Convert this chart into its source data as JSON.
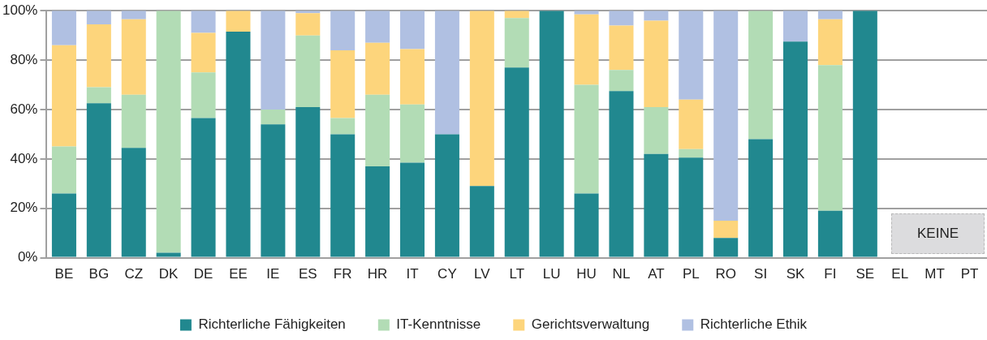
{
  "chart_data": {
    "type": "bar",
    "stacked": true,
    "categories": [
      "BE",
      "BG",
      "CZ",
      "DK",
      "DE",
      "EE",
      "IE",
      "ES",
      "FR",
      "HR",
      "IT",
      "CY",
      "LV",
      "LT",
      "LU",
      "HU",
      "NL",
      "AT",
      "PL",
      "RO",
      "SI",
      "SK",
      "FI",
      "SE",
      "EL",
      "MT",
      "PT"
    ],
    "series": [
      {
        "name": "Richterliche Fähigkeiten",
        "color": "#21888f",
        "values": [
          26,
          62.5,
          44.5,
          2,
          56.5,
          91.5,
          54,
          61,
          50,
          37,
          38.5,
          50,
          29,
          77,
          100,
          26,
          67.5,
          42,
          40.5,
          8,
          48,
          87.5,
          19,
          100,
          null,
          null,
          null
        ]
      },
      {
        "name": "IT-Kenntnisse",
        "color": "#b2dcb5",
        "values": [
          19,
          6.5,
          21.5,
          98,
          18.5,
          0,
          6,
          29,
          6.5,
          29,
          23.5,
          0,
          0,
          20,
          0,
          44,
          8.5,
          19,
          3.5,
          0,
          52,
          0,
          59,
          0,
          null,
          null,
          null
        ]
      },
      {
        "name": "Gerichtsverwaltung",
        "color": "#fdd57c",
        "values": [
          41,
          25.5,
          30.5,
          0,
          16,
          8.5,
          0,
          9,
          27.5,
          21,
          22.5,
          0,
          71,
          3,
          0,
          28.5,
          18,
          35,
          20,
          7,
          0,
          0,
          18.5,
          0,
          null,
          null,
          null
        ]
      },
      {
        "name": "Richterliche Ethik",
        "color": "#b0c0e2",
        "values": [
          14,
          5.5,
          3.5,
          0,
          9,
          0,
          40,
          1,
          16,
          13,
          15.5,
          50,
          0,
          0,
          0,
          1.5,
          6,
          4,
          36,
          85,
          0,
          12.5,
          3.5,
          0,
          null,
          null,
          null
        ]
      }
    ],
    "ylim": [
      0,
      100
    ],
    "yticks": [
      {
        "value": 0,
        "label": "0%"
      },
      {
        "value": 20,
        "label": "20%"
      },
      {
        "value": 40,
        "label": "40%"
      },
      {
        "value": 60,
        "label": "60%"
      },
      {
        "value": 80,
        "label": "80%"
      },
      {
        "value": 100,
        "label": "100%"
      }
    ],
    "grid": "y",
    "legend": "bottom",
    "annotations": [
      "KEINE"
    ]
  }
}
